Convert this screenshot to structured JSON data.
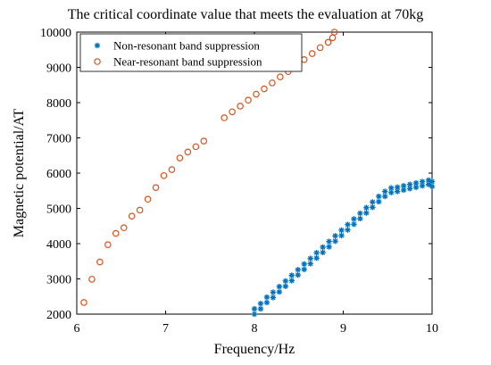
{
  "chart_data": {
    "type": "scatter",
    "title": "The critical coordinate value that meets the evaluation at 70kg",
    "xlabel": "Frequency/Hz",
    "ylabel": "Magnetic potential/AT",
    "xlim": [
      6,
      10
    ],
    "ylim": [
      2000,
      10000
    ],
    "xticks": [
      6,
      7,
      8,
      9,
      10
    ],
    "yticks": [
      2000,
      3000,
      4000,
      5000,
      6000,
      7000,
      8000,
      9000,
      10000
    ],
    "grid": false,
    "legend_position": "top-left",
    "series": [
      {
        "name": "Non-resonant band suppression",
        "marker": "asterisk",
        "color": "#0072BD",
        "x": [
          8.0,
          8.0,
          8.07,
          8.07,
          8.14,
          8.14,
          8.21,
          8.21,
          8.28,
          8.28,
          8.35,
          8.35,
          8.42,
          8.42,
          8.49,
          8.49,
          8.56,
          8.56,
          8.63,
          8.63,
          8.7,
          8.7,
          8.77,
          8.77,
          8.84,
          8.84,
          8.91,
          8.91,
          8.98,
          8.98,
          9.05,
          9.05,
          9.12,
          9.12,
          9.19,
          9.19,
          9.26,
          9.26,
          9.33,
          9.33,
          9.4,
          9.4,
          9.47,
          9.47,
          9.54,
          9.54,
          9.61,
          9.61,
          9.68,
          9.68,
          9.75,
          9.75,
          9.82,
          9.82,
          9.89,
          9.89,
          9.96,
          9.96,
          10.0,
          10.0
        ],
        "y": [
          2000,
          2150,
          2150,
          2300,
          2330,
          2480,
          2470,
          2620,
          2630,
          2780,
          2790,
          2940,
          2950,
          3100,
          3110,
          3260,
          3270,
          3420,
          3430,
          3580,
          3590,
          3740,
          3750,
          3900,
          3910,
          4060,
          4070,
          4220,
          4230,
          4380,
          4390,
          4540,
          4550,
          4700,
          4710,
          4860,
          4870,
          5020,
          5030,
          5180,
          5190,
          5340,
          5340,
          5480,
          5450,
          5580,
          5480,
          5600,
          5520,
          5640,
          5560,
          5680,
          5600,
          5720,
          5640,
          5760,
          5680,
          5800,
          5620,
          5760
        ]
      },
      {
        "name": "Near-resonant band suppression",
        "marker": "circle",
        "color": "#D95319",
        "x": [
          6.08,
          6.17,
          6.26,
          6.35,
          6.44,
          6.53,
          6.62,
          6.71,
          6.8,
          6.89,
          6.98,
          7.07,
          7.16,
          7.25,
          7.34,
          7.43,
          7.66,
          7.75,
          7.84,
          7.93,
          8.02,
          8.11,
          8.2,
          8.29,
          8.38,
          8.47,
          8.56,
          8.65,
          8.74,
          8.83,
          8.88,
          8.9
        ],
        "y": [
          2330,
          2990,
          3480,
          3970,
          4290,
          4450,
          4780,
          4950,
          5260,
          5590,
          5930,
          6100,
          6430,
          6600,
          6750,
          6910,
          7570,
          7740,
          7900,
          8070,
          8240,
          8390,
          8560,
          8730,
          8880,
          9070,
          9220,
          9390,
          9560,
          9710,
          9840,
          10000
        ]
      }
    ]
  }
}
